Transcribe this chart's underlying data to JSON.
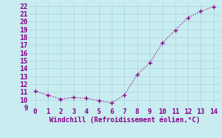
{
  "x": [
    0,
    1,
    2,
    3,
    4,
    5,
    6,
    7,
    8,
    9,
    10,
    11,
    12,
    13,
    14
  ],
  "y": [
    11.1,
    10.6,
    10.1,
    10.3,
    10.2,
    9.9,
    9.6,
    10.6,
    13.2,
    14.7,
    17.3,
    18.9,
    20.5,
    21.3,
    21.9
  ],
  "line_color": "#880088",
  "marker": "+",
  "xlabel": "Windchill (Refroidissement éolien,°C)",
  "xlabel_color": "#880088",
  "background_color": "#c8ecf0",
  "grid_color": "#aad8e0",
  "tick_color": "#880088",
  "xlim": [
    -0.5,
    14.5
  ],
  "ylim": [
    9,
    22.4
  ],
  "yticks": [
    9,
    10,
    11,
    12,
    13,
    14,
    15,
    16,
    17,
    18,
    19,
    20,
    21,
    22
  ],
  "xticks": [
    0,
    1,
    2,
    3,
    4,
    5,
    6,
    7,
    8,
    9,
    10,
    11,
    12,
    13,
    14
  ],
  "fontsize": 7,
  "xlabel_fontsize": 7
}
